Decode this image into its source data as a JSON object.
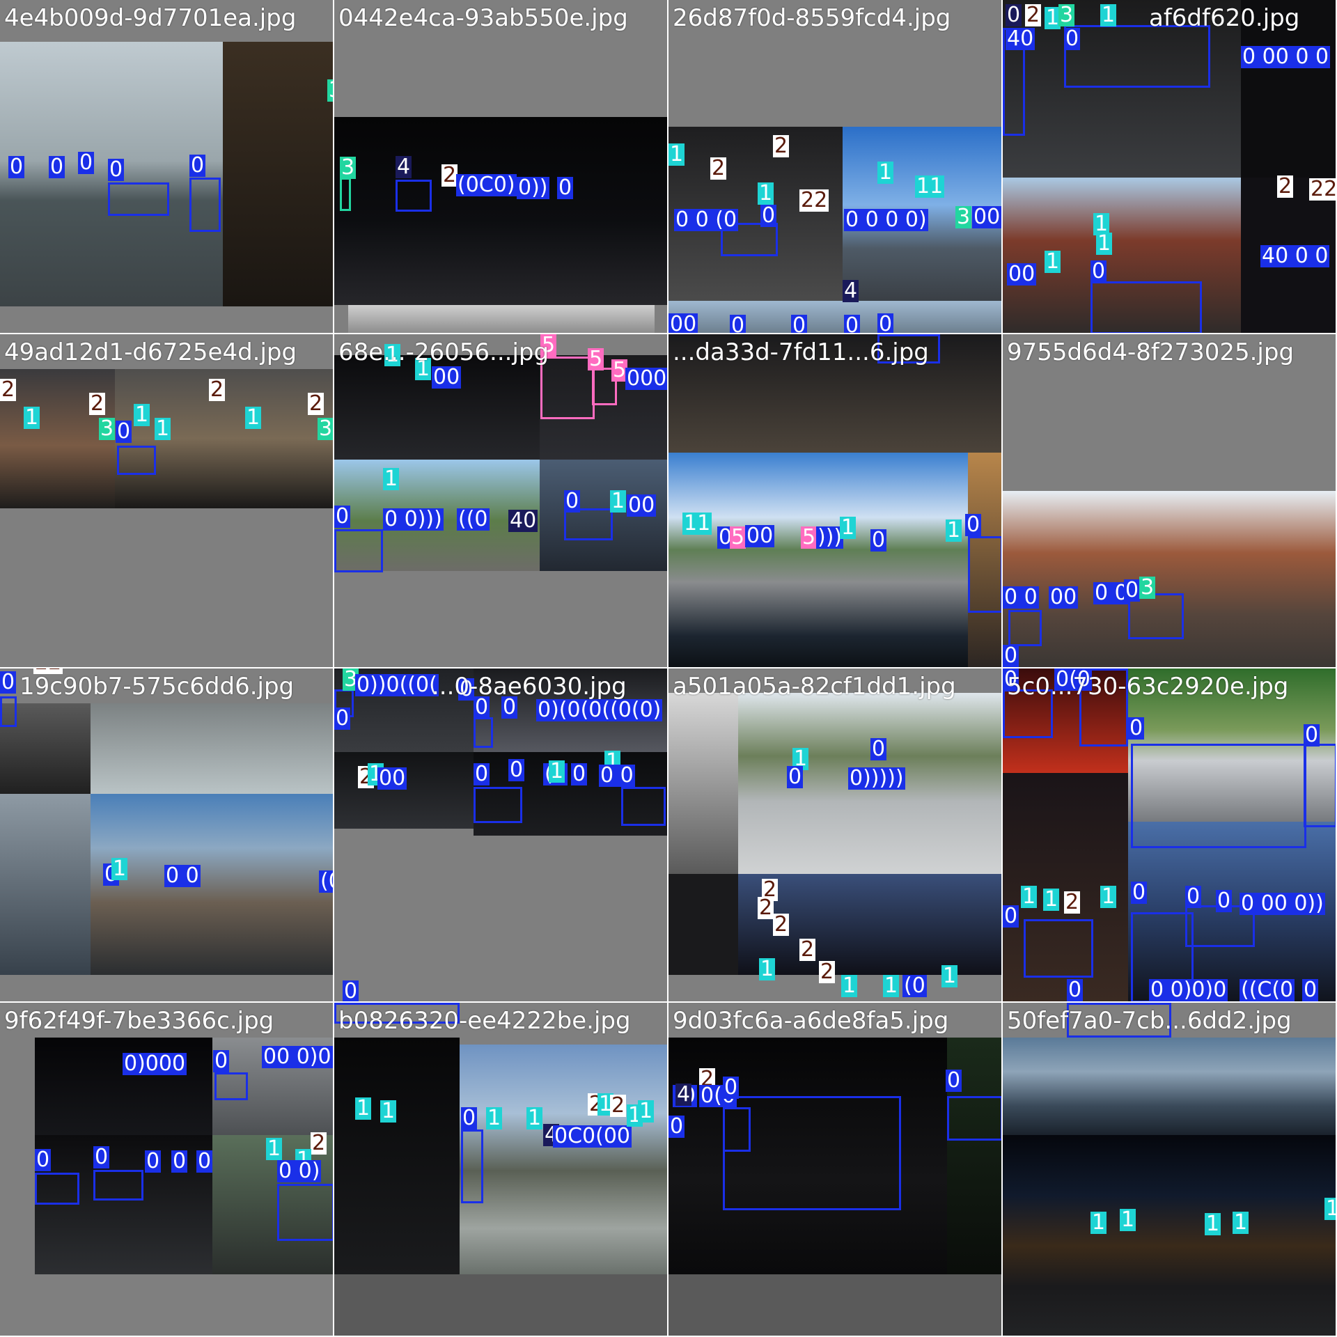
{
  "mosaic": {
    "cells": [
      {
        "filename": "4e4b009d-9d7701ea.jpg"
      },
      {
        "filename": "0442e4ca-93ab550e.jpg"
      },
      {
        "filename": "26d87f0d-8559fcd4.jpg"
      },
      {
        "filename": "af6df620.jpg"
      },
      {
        "filename": "49ad12d1-d6725e4d.jpg"
      },
      {
        "filename": "68e...-26056...jpg"
      },
      {
        "filename": "...da33d-7fd11...6.jpg"
      },
      {
        "filename": "9755d6d4-8f273025.jpg"
      },
      {
        "filename": "19c90b7-575c6dd6.jpg"
      },
      {
        "filename": "...0-8ae6030.jpg"
      },
      {
        "filename": "a501a05a-82cf1dd1.jpg"
      },
      {
        "filename": "5c0...730-63c2920e.jpg"
      },
      {
        "filename": "9f62f49f-7be3366c.jpg"
      },
      {
        "filename": "b0826320-ee4222be.jpg"
      },
      {
        "filename": "9d03fc6a-a6de8fa5.jpg"
      },
      {
        "filename": "50fef7a0-7cb...6dd2.jpg"
      }
    ],
    "colors": {
      "class_0": "#1a2fe8",
      "class_1": "#1ed4d4",
      "class_2": "#ffffff",
      "class_3": "#22d6a0",
      "class_4": "#1a1a5a",
      "class_5": "#ff6cc0"
    }
  }
}
